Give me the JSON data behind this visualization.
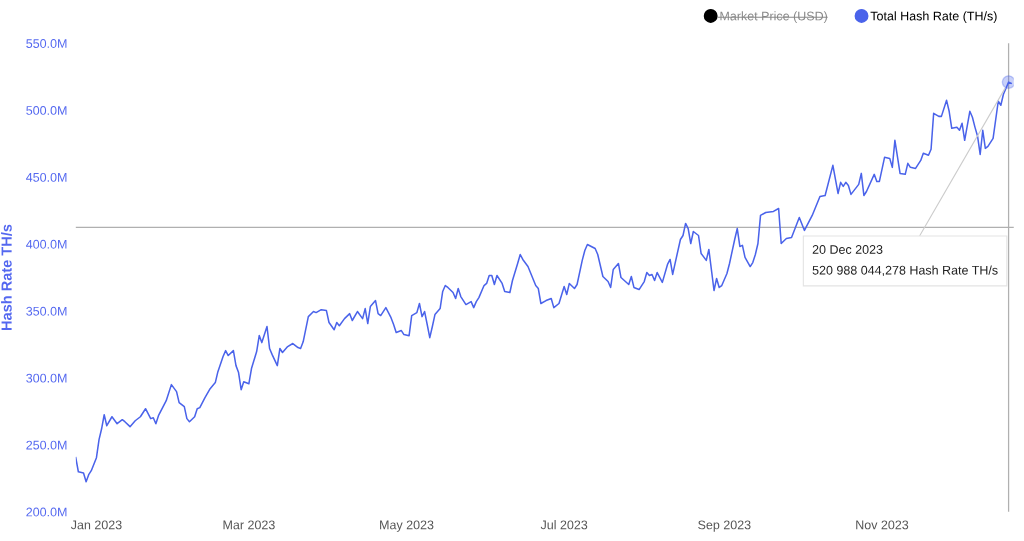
{
  "chart_data": {
    "type": "line",
    "ylabel": "Hash Rate TH/s",
    "legend": "top right",
    "grid": false,
    "marker": "none",
    "line_style": "solid",
    "xlim": [
      "2022-12-24",
      "2023-12-22"
    ],
    "xticks": [
      {
        "value": "2023-01-01",
        "label": "Jan 2023"
      },
      {
        "value": "2023-03-01",
        "label": "Mar 2023"
      },
      {
        "value": "2023-05-01",
        "label": "May 2023"
      },
      {
        "value": "2023-07-01",
        "label": "Jul 2023"
      },
      {
        "value": "2023-09-01",
        "label": "Sep 2023"
      },
      {
        "value": "2023-11-01",
        "label": "Nov 2023"
      }
    ],
    "ylim": [
      200,
      550
    ],
    "yticks": [
      {
        "value": 200,
        "label": "200.0M"
      },
      {
        "value": 250,
        "label": "250.0M"
      },
      {
        "value": 300,
        "label": "300.0M"
      },
      {
        "value": 350,
        "label": "350.0M"
      },
      {
        "value": 400,
        "label": "400.0M"
      },
      {
        "value": 450,
        "label": "450.0M"
      },
      {
        "value": 500,
        "label": "500.0M"
      },
      {
        "value": 550,
        "label": "550.0M"
      }
    ],
    "ref_lines": [
      {
        "axis": "y",
        "value": 412.4,
        "label": null,
        "color": "#b0b0b0"
      },
      {
        "axis": "x",
        "value": "2023-12-20",
        "label": null,
        "color": "#b0b0b0"
      }
    ],
    "annotations": [
      {
        "text": "20 Dec 2023\n520 988 044,278 Hash Rate TH/s",
        "x": "2023-12-20",
        "y": 520.988044278
      }
    ],
    "series": [
      {
        "name": "Market Price (USD)",
        "color": "#000000"
      },
      {
        "name": "Total Hash Rate (TH/s)",
        "color": "#4a63ea",
        "x": [
          "2022-12-24",
          "2022-12-25",
          "2022-12-27",
          "2022-12-28",
          "2022-12-29",
          "2022-12-30",
          "2023-01-01",
          "2023-01-02",
          "2023-01-03",
          "2023-01-04",
          "2023-01-05",
          "2023-01-07",
          "2023-01-09",
          "2023-01-11",
          "2023-01-12",
          "2023-01-14",
          "2023-01-16",
          "2023-01-18",
          "2023-01-20",
          "2023-01-22",
          "2023-01-23",
          "2023-01-24",
          "2023-01-25",
          "2023-01-28",
          "2023-01-30",
          "2023-02-01",
          "2023-02-02",
          "2023-02-04",
          "2023-02-05",
          "2023-02-06",
          "2023-02-08",
          "2023-02-09",
          "2023-02-10",
          "2023-02-12",
          "2023-02-14",
          "2023-02-16",
          "2023-02-17",
          "2023-02-19",
          "2023-02-20",
          "2023-02-21",
          "2023-02-23",
          "2023-02-24",
          "2023-02-25",
          "2023-02-26",
          "2023-02-27",
          "2023-03-01",
          "2023-03-02",
          "2023-03-04",
          "2023-03-05",
          "2023-03-06",
          "2023-03-08",
          "2023-03-09",
          "2023-03-10",
          "2023-03-12",
          "2023-03-13",
          "2023-03-14",
          "2023-03-16",
          "2023-03-18",
          "2023-03-20",
          "2023-03-21",
          "2023-03-22",
          "2023-03-24",
          "2023-03-26",
          "2023-03-27",
          "2023-03-29",
          "2023-03-31",
          "2023-04-01",
          "2023-04-03",
          "2023-04-04",
          "2023-04-05",
          "2023-04-07",
          "2023-04-09",
          "2023-04-10",
          "2023-04-12",
          "2023-04-14",
          "2023-04-15",
          "2023-04-16",
          "2023-04-17",
          "2023-04-19",
          "2023-04-20",
          "2023-04-21",
          "2023-04-23",
          "2023-04-25",
          "2023-04-26",
          "2023-04-27",
          "2023-04-29",
          "2023-04-30",
          "2023-05-02",
          "2023-05-03",
          "2023-05-05",
          "2023-05-06",
          "2023-05-07",
          "2023-05-08",
          "2023-05-09",
          "2023-05-10",
          "2023-05-11",
          "2023-05-12",
          "2023-05-14",
          "2023-05-15",
          "2023-05-16",
          "2023-05-17",
          "2023-05-19",
          "2023-05-20",
          "2023-05-21",
          "2023-05-22",
          "2023-05-24",
          "2023-05-26",
          "2023-05-27",
          "2023-05-28",
          "2023-05-29",
          "2023-05-31",
          "2023-06-01",
          "2023-06-02",
          "2023-06-03",
          "2023-06-04",
          "2023-06-05",
          "2023-06-07",
          "2023-06-08",
          "2023-06-10",
          "2023-06-11",
          "2023-06-13",
          "2023-06-14",
          "2023-06-15",
          "2023-06-17",
          "2023-06-20",
          "2023-06-21",
          "2023-06-22",
          "2023-06-24",
          "2023-06-26",
          "2023-06-27",
          "2023-06-29",
          "2023-07-01",
          "2023-07-02",
          "2023-07-03",
          "2023-07-05",
          "2023-07-06",
          "2023-07-08",
          "2023-07-09",
          "2023-07-10",
          "2023-07-13",
          "2023-07-14",
          "2023-07-16",
          "2023-07-18",
          "2023-07-19",
          "2023-07-20",
          "2023-07-22",
          "2023-07-23",
          "2023-07-26",
          "2023-07-27",
          "2023-07-28",
          "2023-07-30",
          "2023-08-01",
          "2023-08-02",
          "2023-08-03",
          "2023-08-04",
          "2023-08-05",
          "2023-08-06",
          "2023-08-08",
          "2023-08-10",
          "2023-08-11",
          "2023-08-12",
          "2023-08-13",
          "2023-08-15",
          "2023-08-16",
          "2023-08-17",
          "2023-08-18",
          "2023-08-19",
          "2023-08-20",
          "2023-08-22",
          "2023-08-23",
          "2023-08-25",
          "2023-08-26",
          "2023-08-28",
          "2023-08-29",
          "2023-08-30",
          "2023-08-31",
          "2023-09-02",
          "2023-09-03",
          "2023-09-05",
          "2023-09-06",
          "2023-09-07",
          "2023-09-08",
          "2023-09-09",
          "2023-09-11",
          "2023-09-12",
          "2023-09-13",
          "2023-09-14",
          "2023-09-15",
          "2023-09-17",
          "2023-09-20",
          "2023-09-22",
          "2023-09-23",
          "2023-09-25",
          "2023-09-27",
          "2023-09-30",
          "2023-10-02",
          "2023-10-05",
          "2023-10-08",
          "2023-10-10",
          "2023-10-13",
          "2023-10-15",
          "2023-10-16",
          "2023-10-17",
          "2023-10-18",
          "2023-10-19",
          "2023-10-20",
          "2023-10-23",
          "2023-10-24",
          "2023-10-25",
          "2023-10-26",
          "2023-10-29",
          "2023-10-30",
          "2023-10-31",
          "2023-11-02",
          "2023-11-04",
          "2023-11-05",
          "2023-11-06",
          "2023-11-08",
          "2023-11-10",
          "2023-11-11",
          "2023-11-12",
          "2023-11-14",
          "2023-11-16",
          "2023-11-17",
          "2023-11-19",
          "2023-11-20",
          "2023-11-21",
          "2023-11-23",
          "2023-11-24",
          "2023-11-26",
          "2023-11-27",
          "2023-11-28",
          "2023-11-30",
          "2023-12-01",
          "2023-12-02",
          "2023-12-03",
          "2023-12-05",
          "2023-12-06",
          "2023-12-07",
          "2023-12-08",
          "2023-12-09",
          "2023-12-10",
          "2023-12-11",
          "2023-12-12",
          "2023-12-14",
          "2023-12-16",
          "2023-12-17",
          "2023-12-18",
          "2023-12-20",
          "2023-12-21"
        ],
        "values": [
          240.4,
          229.9,
          229.0,
          222.4,
          227.7,
          230.7,
          240.4,
          253.9,
          262.0,
          272.5,
          264.3,
          271.0,
          265.8,
          268.8,
          267.3,
          263.6,
          268.0,
          271.0,
          277.0,
          269.6,
          270.3,
          265.8,
          271.8,
          283.0,
          295.0,
          289.8,
          281.5,
          278.5,
          269.6,
          267.3,
          271.0,
          277.0,
          277.8,
          285.3,
          292.0,
          296.5,
          304.7,
          316.0,
          320.4,
          316.7,
          320.4,
          309.2,
          304.0,
          291.2,
          297.2,
          295.7,
          307.0,
          319.7,
          331.6,
          326.4,
          338.4,
          322.0,
          317.4,
          309.2,
          322.0,
          319.0,
          323.4,
          325.7,
          322.7,
          322.0,
          327.0,
          345.8,
          349.6,
          348.8,
          351.0,
          350.3,
          341.4,
          336.0,
          341.4,
          339.0,
          344.3,
          348.0,
          342.9,
          349.6,
          344.3,
          351.8,
          340.6,
          353.3,
          357.8,
          348.0,
          346.6,
          352.5,
          345.0,
          339.9,
          333.9,
          335.4,
          332.4,
          331.6,
          346.6,
          348.8,
          355.6,
          345.8,
          349.6,
          339.9,
          330.1,
          338.4,
          347.3,
          351.8,
          364.6,
          369.0,
          367.6,
          363.8,
          359.3,
          366.8,
          360.8,
          354.8,
          357.0,
          352.5,
          357.0,
          360.0,
          369.0,
          370.6,
          376.5,
          376.5,
          369.8,
          376.5,
          370.6,
          364.6,
          363.8,
          372.8,
          385.5,
          392.2,
          388.5,
          383.2,
          369.0,
          366.8,
          355.6,
          357.8,
          359.3,
          352.5,
          355.6,
          368.3,
          362.3,
          370.6,
          366.8,
          369.8,
          387.8,
          395.2,
          399.7,
          396.7,
          392.2,
          375.8,
          372.0,
          367.6,
          381.0,
          385.5,
          375.0,
          369.8,
          375.8,
          367.6,
          366.0,
          372.0,
          378.7,
          376.5,
          377.3,
          372.8,
          378.7,
          371.4,
          384.8,
          388.5,
          377.3,
          386.2,
          403.4,
          406.4,
          415.4,
          411.6,
          400.4,
          409.4,
          406.4,
          393.0,
          387.8,
          396.0,
          365.3,
          374.3,
          367.6,
          369.0,
          378.0,
          385.5,
          403.4,
          411.6,
          398.2,
          399.0,
          390.0,
          383.2,
          386.2,
          392.2,
          400.4,
          421.4,
          423.6,
          424.4,
          426.6,
          400.4,
          404.2,
          404.9,
          419.9,
          410.2,
          421.4,
          435.6,
          436.3,
          458.8,
          437.8,
          446.1,
          443.1,
          446.1,
          443.8,
          437.1,
          444.6,
          452.8,
          436.3,
          439.3,
          452.1,
          446.8,
          446.8,
          464.8,
          464.0,
          457.3,
          477.5,
          452.8,
          452.1,
          460.3,
          457.3,
          456.5,
          462.5,
          467.8,
          466.3,
          470.8,
          497.7,
          495.4,
          495.4,
          507.4,
          499.2,
          486.5,
          487.2,
          485.0,
          490.2,
          477.5,
          499.2,
          494.7,
          487.2,
          480.5,
          467.0,
          485.0,
          471.5,
          473.0,
          479.0,
          506.7,
          503.7,
          511.9,
          521.0,
          520.1
        ]
      }
    ]
  }
}
